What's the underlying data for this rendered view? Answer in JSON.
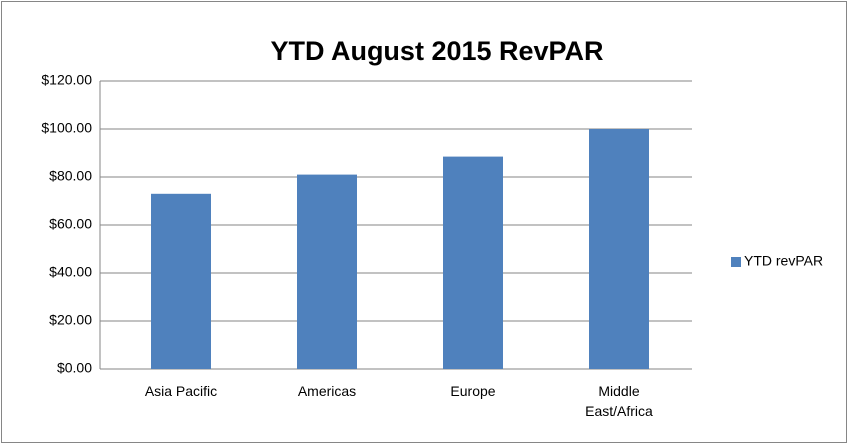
{
  "chart_data": {
    "type": "bar",
    "title": "YTD August 2015 RevPAR",
    "categories": [
      "Asia Pacific",
      "Americas",
      "Europe",
      "Middle East/Africa"
    ],
    "series": [
      {
        "name": "YTD revPAR",
        "color": "#4f81bd",
        "values": [
          73,
          81,
          88.5,
          100
        ]
      }
    ],
    "ylim": [
      0,
      120
    ],
    "yticks": [
      {
        "value": 0,
        "label": "$0.00"
      },
      {
        "value": 20,
        "label": "$20.00"
      },
      {
        "value": 40,
        "label": "$40.00"
      },
      {
        "value": 60,
        "label": "$60.00"
      },
      {
        "value": 80,
        "label": "$80.00"
      },
      {
        "value": 100,
        "label": "$100.00"
      },
      {
        "value": 120,
        "label": "$120.00"
      }
    ],
    "grid": true,
    "legend": "right"
  }
}
